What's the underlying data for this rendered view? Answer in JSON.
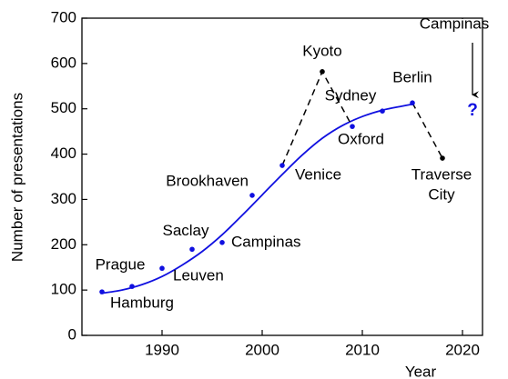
{
  "chart_data": {
    "type": "line",
    "xlabel": "Year",
    "ylabel": "Number of presentations",
    "xlim": [
      1982,
      2022
    ],
    "ylim": [
      0,
      700
    ],
    "xticks": [
      1990,
      2000,
      2010,
      2020
    ],
    "yticks": [
      0,
      100,
      200,
      300,
      400,
      500,
      600,
      700
    ],
    "fit": {
      "color": "#1010e0",
      "x": [
        1984,
        1986,
        1988,
        1990,
        1992,
        1994,
        1996,
        1998,
        2000,
        2002,
        2004,
        2006,
        2008,
        2010,
        2012,
        2014,
        2015
      ],
      "values": [
        93,
        100,
        112,
        130,
        155,
        185,
        222,
        265,
        310,
        355,
        398,
        435,
        463,
        483,
        497,
        506,
        510
      ]
    },
    "points": {
      "color": "#1010e0",
      "x": [
        1984,
        1987,
        1990,
        1993,
        1996,
        1999,
        2002,
        2009,
        2012,
        2015
      ],
      "values": [
        96,
        108,
        148,
        190,
        205,
        309,
        375,
        461,
        495,
        513
      ],
      "labels": [
        "Hamburg",
        "Prague",
        "Leuven",
        "Saclay",
        "Campinas",
        "Brookhaven",
        "Venice",
        "Oxford",
        "Sydney",
        "Berlin"
      ]
    },
    "other_points": {
      "color": "#000000",
      "x": [
        2006,
        2018
      ],
      "values": [
        582,
        391
      ],
      "labels": [
        "Kyoto",
        [
          "Traverse",
          "City"
        ]
      ]
    },
    "dashed": {
      "color": "#000000",
      "x": [
        2002,
        2006,
        2009,
        null,
        2015,
        2018
      ],
      "values": [
        375,
        582,
        461,
        null,
        513,
        391
      ]
    },
    "annotation": {
      "text": "Campinas",
      "marker": "?",
      "x": 2021,
      "value": 495,
      "color": "#1010e0"
    }
  }
}
